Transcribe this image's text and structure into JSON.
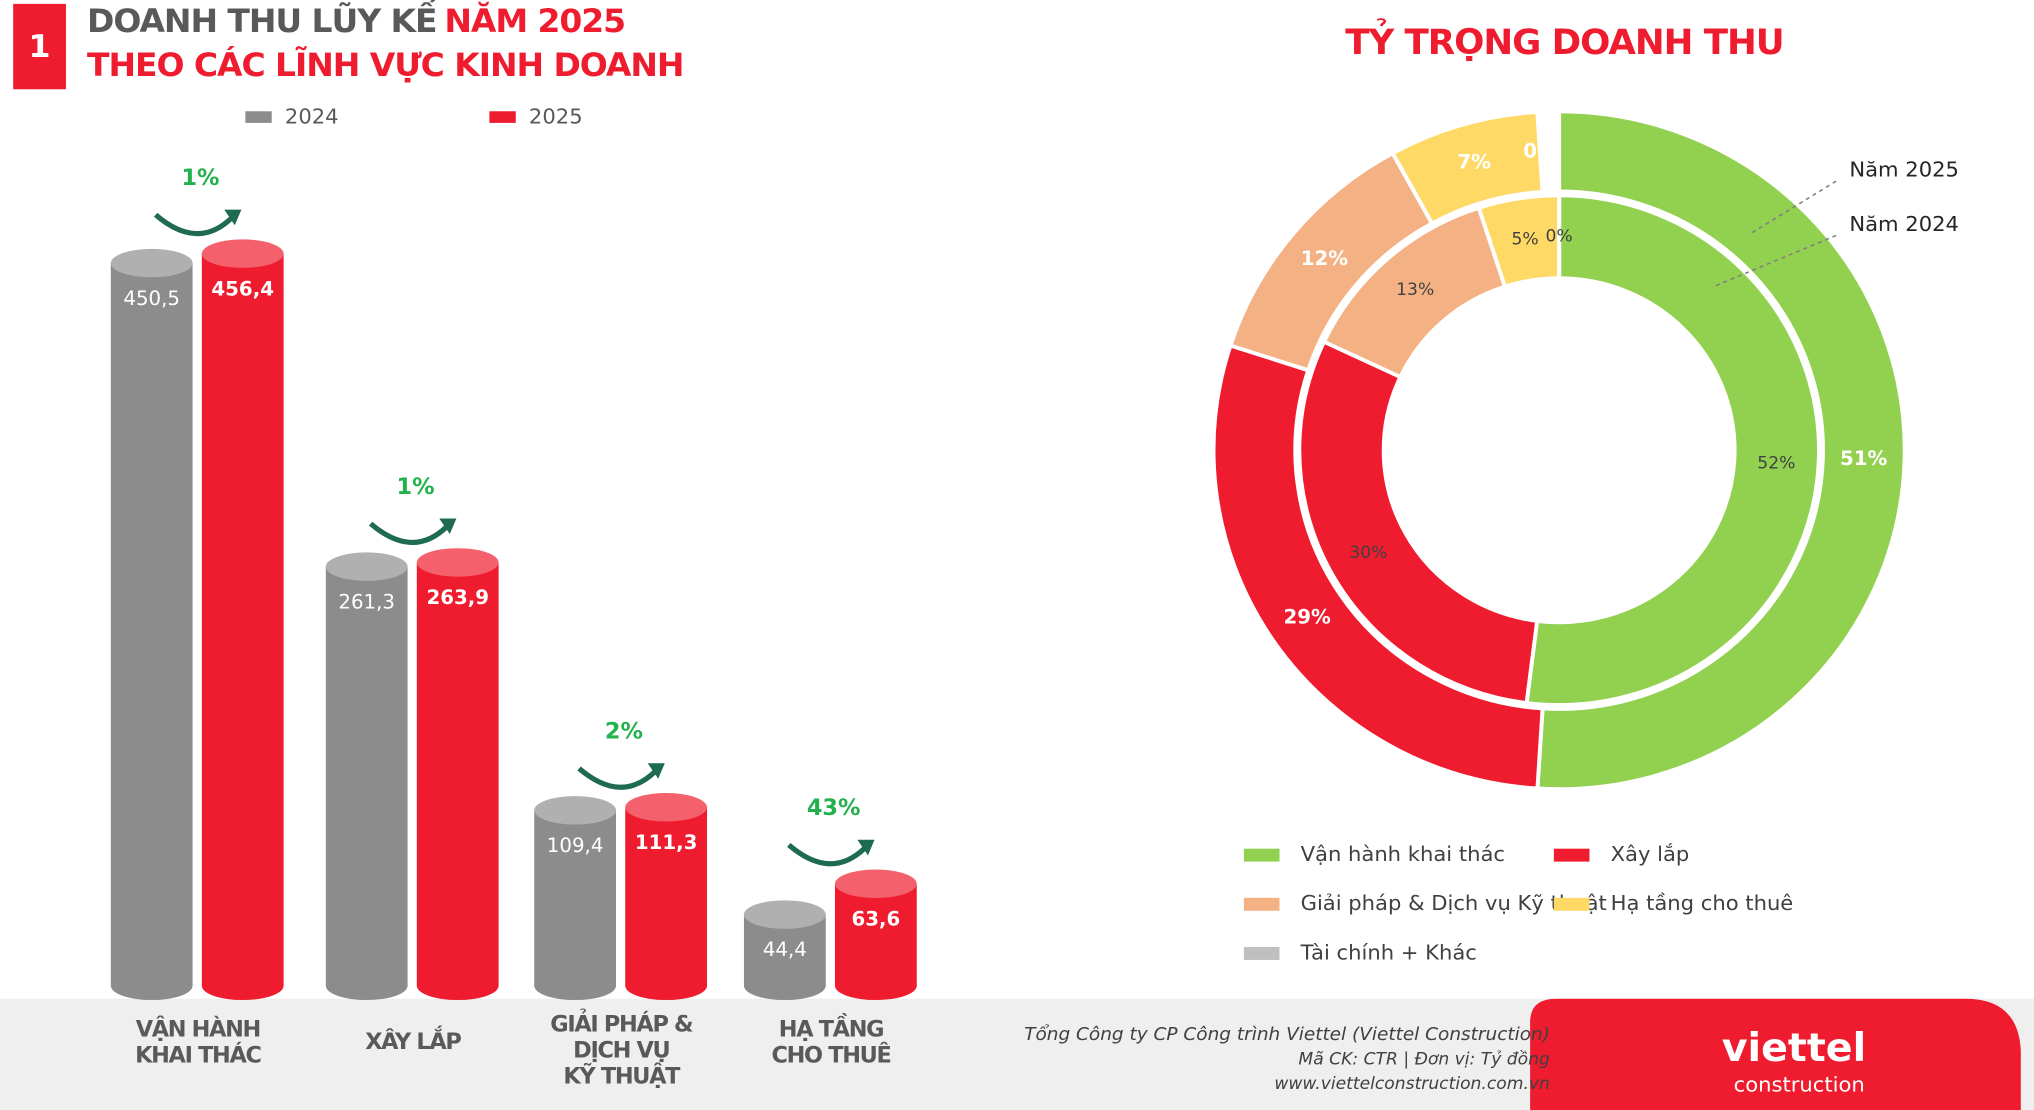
{
  "section": "1",
  "chart_data": [
    {
      "type": "bar",
      "title": "DOANH THU LŨY KẾ",
      "title_highlight": "NĂM 2025",
      "subtitle": "THEO CÁC LĨNH VỰC KINH DOANH",
      "categories": [
        "VẬN HÀNH\nKHAI THÁC",
        "XÂY LẮP",
        "GIẢI PHÁP &\nDỊCH VỤ\nKỸ THUẬT",
        "HẠ TẦNG\nCHO THUÊ"
      ],
      "series": [
        {
          "name": "2024",
          "color": "#8c8c8c",
          "values": [
            450.5,
            261.3,
            109.4,
            44.4
          ],
          "value_labels": [
            "450,5",
            "261,3",
            "109,4",
            "44,4"
          ]
        },
        {
          "name": "2025",
          "color": "#ee1c2e",
          "values": [
            456.4,
            263.9,
            111.3,
            63.6
          ],
          "value_labels": [
            "456,4",
            "263,9",
            "111,3",
            "63,6"
          ]
        }
      ],
      "growth_labels": [
        "1%",
        "1%",
        "2%",
        "43%"
      ]
    },
    {
      "type": "donut",
      "title": "TỶ TRỌNG DOANH THU",
      "categories": [
        "Vận hành khai thác",
        "Xây lắp",
        "Giải pháp & Dịch vụ Kỹ thuật",
        "Hạ tầng cho thuê",
        "Tài chính + Khác"
      ],
      "series": [
        {
          "name": "Năm 2025",
          "colors": [
            "#92d050",
            "#ee1c2e",
            "#f4b183",
            "#ffd966",
            "#bfbfbf"
          ],
          "values": [
            51,
            29,
            12,
            7,
            0
          ],
          "value_labels": [
            "51%",
            "29%",
            "12%",
            "7%",
            "0%"
          ]
        },
        {
          "name": "Năm 2024",
          "colors": [
            "#92d050",
            "#ee1c2e",
            "#f4b183",
            "#ffd966",
            "#4472c4"
          ],
          "values": [
            52,
            30,
            13,
            5,
            0
          ],
          "value_labels": [
            "52%",
            "30%",
            "13%",
            "5%",
            "0%"
          ]
        }
      ]
    }
  ],
  "footer": {
    "company": "Tổng Công ty CP Công trình Viettel (Viettel Construction)",
    "info": "Mã CK: CTR  |  Đơn vị: Tỷ đồng",
    "website": "www.viettelconstruction.com.vn",
    "logo": "viettel",
    "logo_sub": "construction"
  }
}
